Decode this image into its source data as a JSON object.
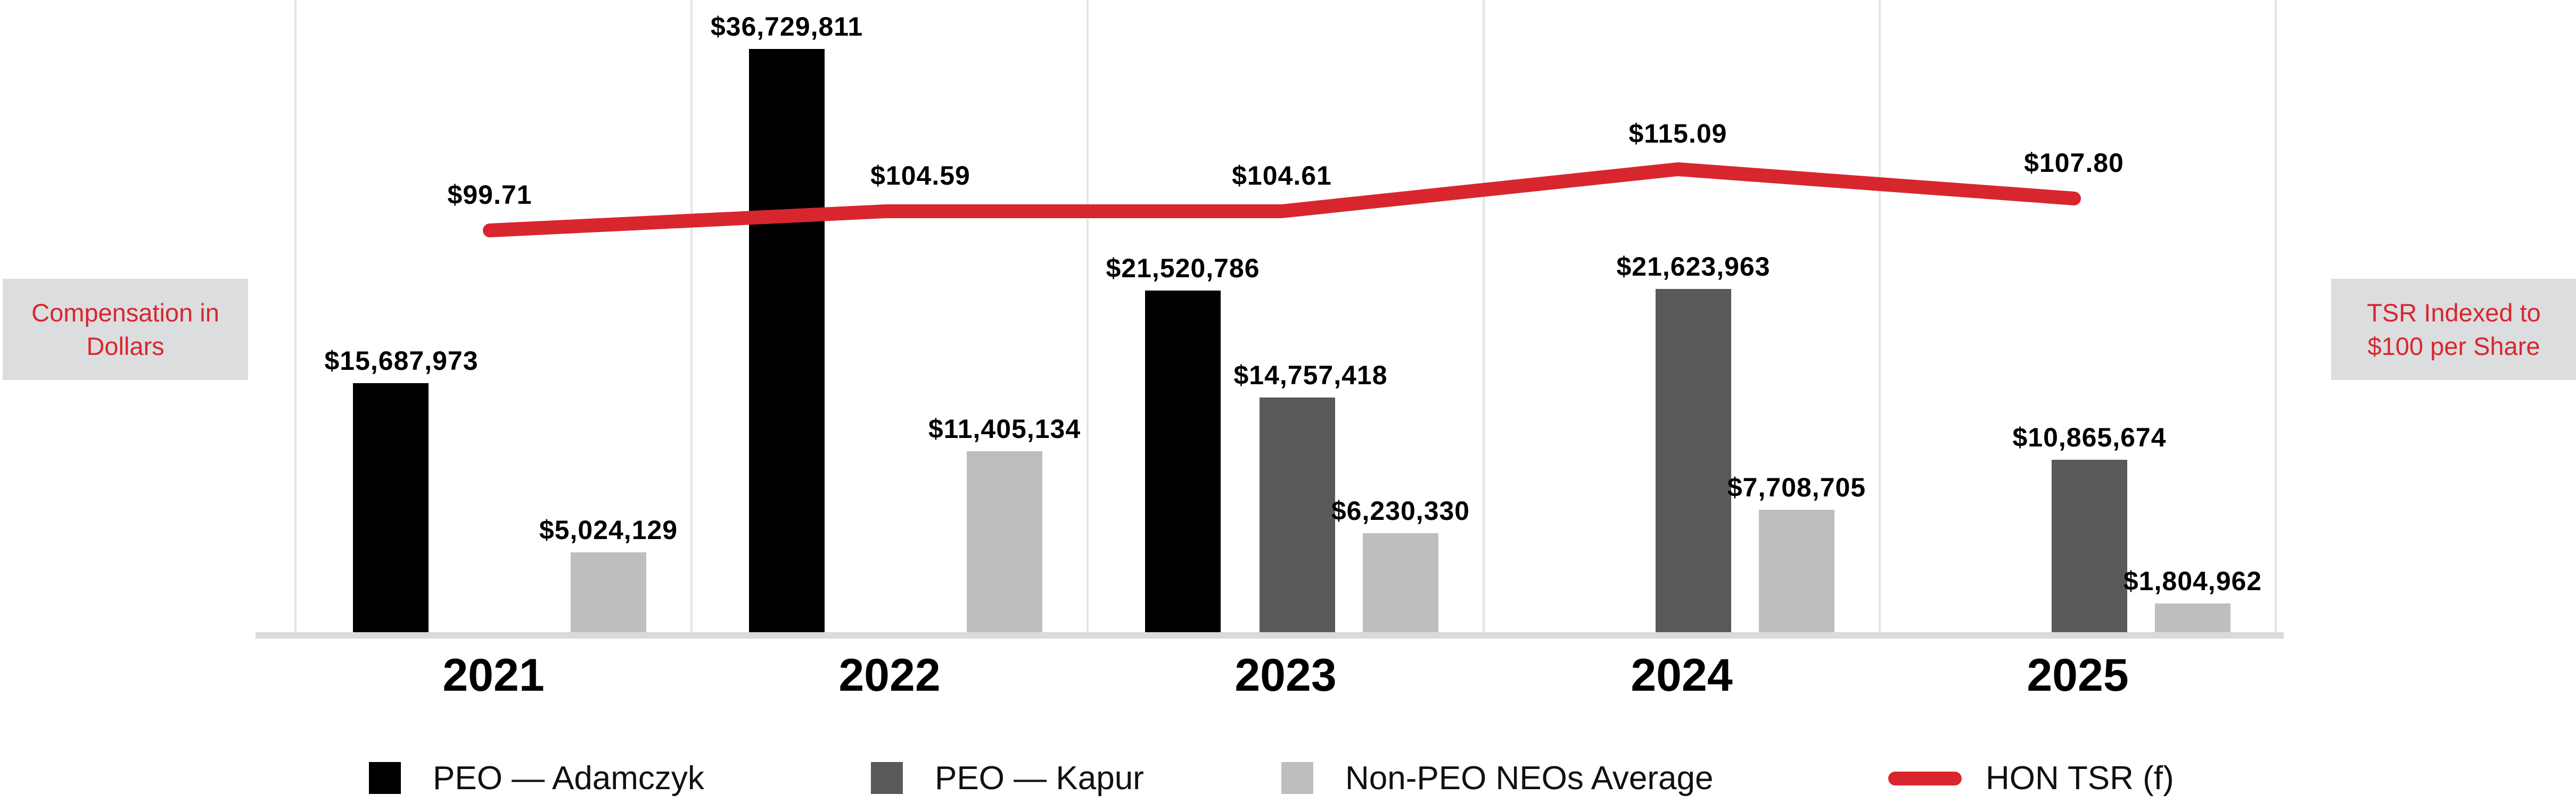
{
  "colors": {
    "accent_red": "#d8262f",
    "bar_black": "#000000",
    "bar_dark_gray": "#58595b",
    "bar_light_gray": "#bcbec0",
    "axis_box_bg": "#dcddde",
    "gridline": "#e4e5e7"
  },
  "chart_data": {
    "type": "bar+line",
    "categories": [
      "2021",
      "2022",
      "2023",
      "2024",
      "2025"
    ],
    "series": [
      {
        "key": "peo-adamczyk",
        "name": "PEO — Adamczyk",
        "color": "#000000",
        "values": [
          15687973,
          36729811,
          21520786,
          null,
          null
        ],
        "labels": [
          "$15,687,973",
          "$36,729,811",
          "$21,520,786",
          null,
          null
        ]
      },
      {
        "key": "peo-kapur",
        "name": "PEO — Kapur",
        "color": "#58595b",
        "values": [
          null,
          null,
          14757418,
          21623963,
          10865674
        ],
        "labels": [
          null,
          null,
          "$14,757,418",
          "$21,623,963",
          "$10,865,674"
        ]
      },
      {
        "key": "non-peo-neos-average",
        "name": "Non-PEO NEOs Average",
        "color": "#bcbec0",
        "values": [
          5024129,
          11405134,
          6230330,
          7708705,
          1804962
        ],
        "labels": [
          "$5,024,129",
          "$11,405,134",
          "$6,230,330",
          "$7,708,705",
          "$1,804,962"
        ]
      }
    ],
    "line": {
      "key": "hon-tsr",
      "name": "HON TSR (f)",
      "color": "#d8262f",
      "values": [
        99.71,
        104.59,
        104.61,
        115.09,
        107.8
      ],
      "labels": [
        "$99.71",
        "$104.59",
        "$104.61",
        "$115.09",
        "$107.80"
      ]
    },
    "left_axis_label": {
      "line1": "Compensation in",
      "line2": "Dollars"
    },
    "right_axis_label": {
      "line1": "TSR Indexed to",
      "line2": "$100 per Share"
    },
    "layout_hints": {
      "dollar_axis_visible": false,
      "tsr_axis_visible": false,
      "gridlines": "vertical category separators only",
      "legend_position": "bottom"
    }
  }
}
